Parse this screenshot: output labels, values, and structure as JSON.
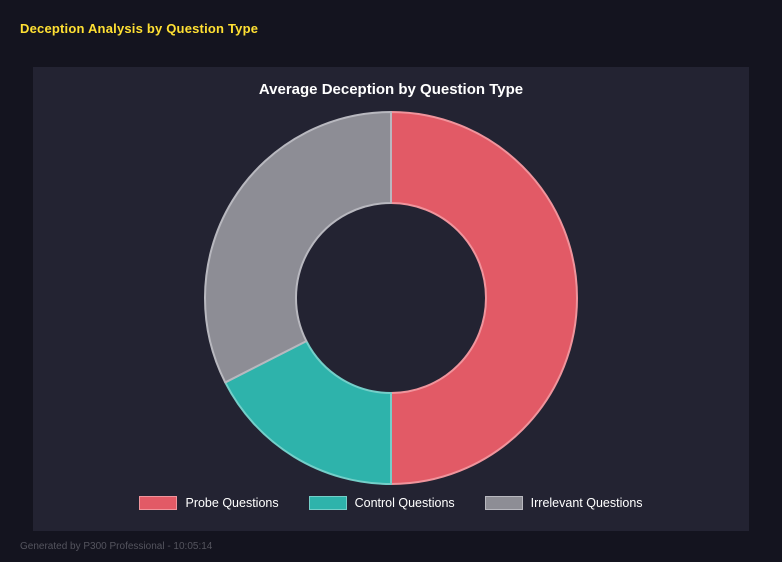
{
  "page": {
    "title": "Deception Analysis by Question Type",
    "footer": "Generated by P300 Professional - 10:05:14"
  },
  "chart_data": {
    "type": "pie",
    "subtype": "donut",
    "title": "Average Deception by Question Type",
    "inner_radius_ratio": 0.51,
    "start_angle_deg": 0,
    "direction": "clockwise",
    "legend_position": "bottom",
    "values_unit": "percent_of_total",
    "segments": [
      {
        "label": "Probe Questions",
        "value": 50.0,
        "color": "#e25a66",
        "border_color": "#f0949c"
      },
      {
        "label": "Control Questions",
        "value": 17.5,
        "color": "#2eb3ab",
        "border_color": "#74cfc9"
      },
      {
        "label": "Irrelevant Questions",
        "value": 32.5,
        "color": "#8d8d95",
        "border_color": "#b8b8bf"
      }
    ]
  },
  "colors": {
    "page_bg": "#14141f",
    "card_bg": "#232332",
    "page_title": "#ffe033",
    "chart_title": "#ffffff",
    "legend_text": "#ffffff",
    "footer_text": "#54545e"
  }
}
